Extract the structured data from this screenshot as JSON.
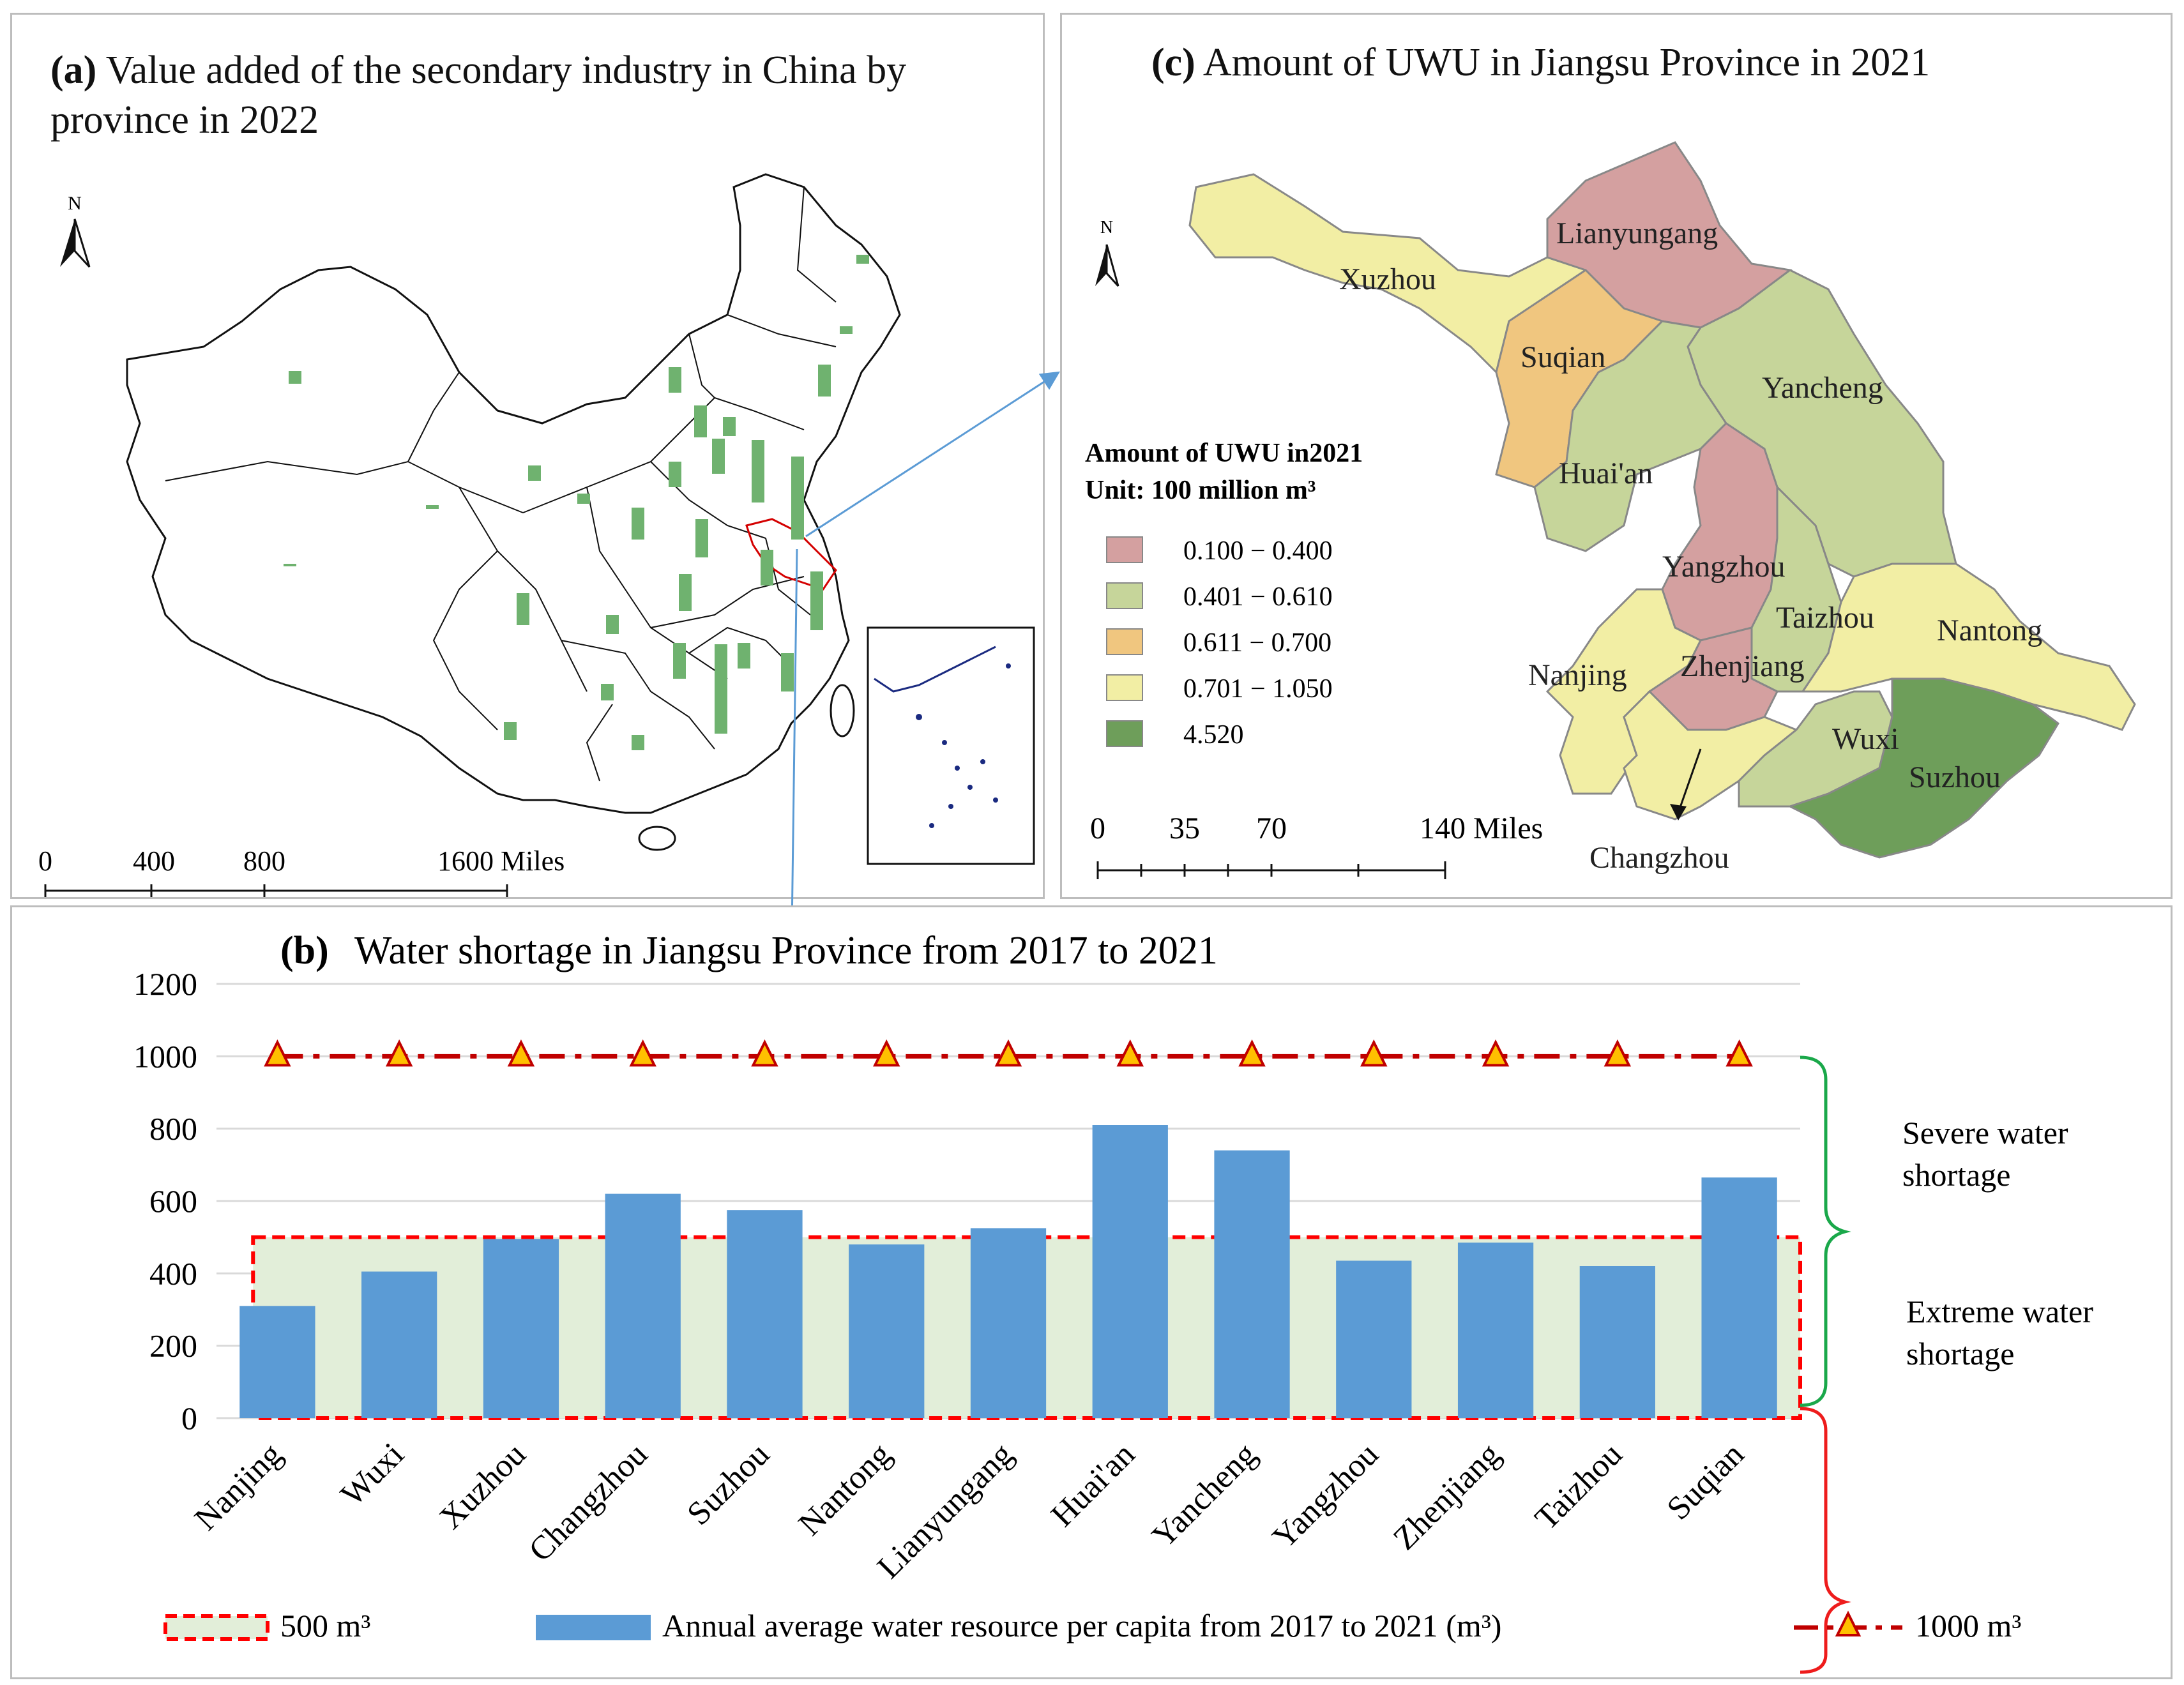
{
  "panel_a": {
    "label": "(a)",
    "title": "Value added of the secondary industry in China by province in 2022",
    "north": "N",
    "scale_labels": [
      "0",
      "400",
      "800",
      "1600 Miles"
    ]
  },
  "panel_c": {
    "label": "(c)",
    "title": "Amount of UWU in Jiangsu Province in 2021",
    "north": "N",
    "legend_title_1": "Amount of UWU in2021",
    "legend_title_2": "Unit: 100 million m³",
    "legend": [
      {
        "label": "0.100 − 0.400",
        "color": "#d4a0a0"
      },
      {
        "label": "0.401 − 0.610",
        "color": "#c6d59a"
      },
      {
        "label": "0.611 − 0.700",
        "color": "#f0c67f"
      },
      {
        "label": "0.701 − 1.050",
        "color": "#f2eea4"
      },
      {
        "label": "4.520",
        "color": "#6e9e5a"
      }
    ],
    "scale_labels": [
      "0",
      "35",
      "70",
      "140 Miles"
    ],
    "cities": [
      "Lianyungang",
      "Xuzhou",
      "Suqian",
      "Yancheng",
      "Huai'an",
      "Yangzhou",
      "Taizhou",
      "Nantong",
      "Nanjing",
      "Zhenjiang",
      "Wuxi",
      "Suzhou",
      "Changzhou"
    ]
  },
  "panel_b": {
    "label": "(b)",
    "annotations": {
      "severe": [
        "Severe water",
        "shortage"
      ],
      "extreme": [
        "Extreme water",
        "shortage"
      ]
    },
    "legend": {
      "box": "500 m³",
      "bars": "Annual average water resource per capita from 2017 to 2021 (m³)",
      "line": "1000 m³"
    }
  },
  "chart_data": {
    "type": "bar",
    "title": "Water shortage in Jiangsu Province from 2017 to 2021",
    "categories": [
      "Nanjing",
      "Wuxi",
      "Xuzhou",
      "Changzhou",
      "Suzhou",
      "Nantong",
      "Lianyungang",
      "Huai'an",
      "Yancheng",
      "Yangzhou",
      "Zhenjiang",
      "Taizhou",
      "Suqian"
    ],
    "series": [
      {
        "name": "Annual average water resource per capita from 2017 to 2021 (m³)",
        "values": [
          310,
          405,
          495,
          620,
          575,
          480,
          525,
          810,
          740,
          435,
          485,
          420,
          665
        ],
        "color": "#5b9bd5"
      }
    ],
    "reference_lines": [
      {
        "name": "1000 m³",
        "value": 1000,
        "style": "dash-dot with triangle markers",
        "color": "#c00000"
      },
      {
        "name": "500 m³",
        "value": 500,
        "style": "dashed box",
        "color": "#ff0000"
      }
    ],
    "ylim": [
      0,
      1200
    ],
    "yticks": [
      0,
      200,
      400,
      600,
      800,
      1000,
      1200
    ],
    "grid": true,
    "legend": "bottom"
  }
}
